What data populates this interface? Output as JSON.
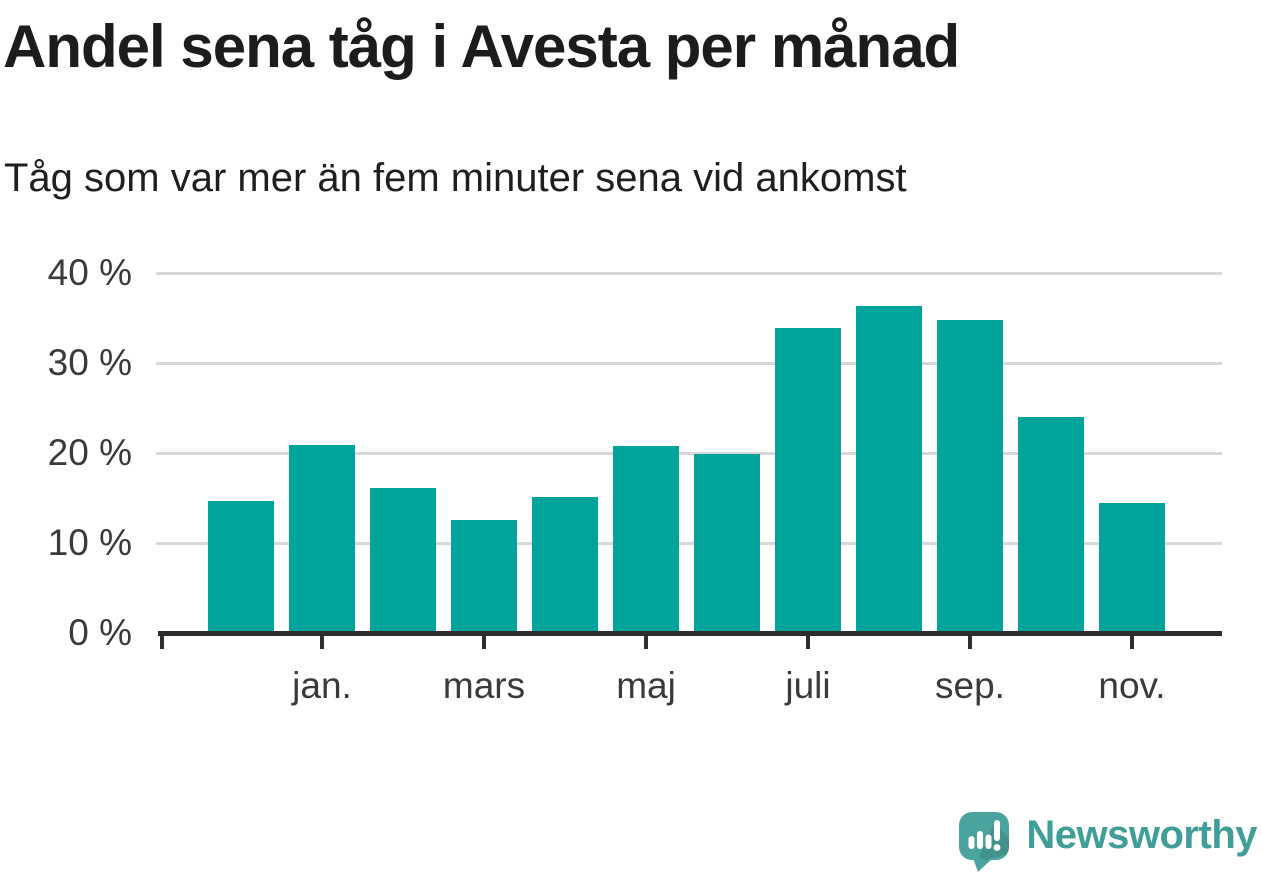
{
  "header": {
    "title": "Andel sena tåg i Avesta per månad",
    "subtitle": "Tåg som var mer än fem minuter sena vid ankomst"
  },
  "chart_data": {
    "type": "bar",
    "title": "Andel sena tåg i Avesta per månad",
    "subtitle": "Tåg som var mer än fem minuter sena vid ankomst",
    "unit": "%",
    "n_bars": 12,
    "values": [
      14.7,
      20.9,
      16.1,
      12.6,
      15.1,
      20.8,
      19.9,
      33.9,
      36.3,
      34.8,
      24.0,
      14.5
    ],
    "x_ticks": [
      {
        "label": "jan.",
        "bar_index": 1
      },
      {
        "label": "mars",
        "bar_index": 3
      },
      {
        "label": "maj",
        "bar_index": 5
      },
      {
        "label": "juli",
        "bar_index": 7
      },
      {
        "label": "sep.",
        "bar_index": 9
      },
      {
        "label": "nov.",
        "bar_index": 11
      }
    ],
    "y_ticks": [
      {
        "value": 0,
        "label": "0 %"
      },
      {
        "value": 10,
        "label": "10 %"
      },
      {
        "value": 20,
        "label": "20 %"
      },
      {
        "value": 30,
        "label": "30 %"
      },
      {
        "value": 40,
        "label": "40 %"
      }
    ],
    "ylim": [
      0,
      40
    ],
    "xlabel": "",
    "ylabel": "",
    "grid": "horizontal",
    "legend": "none",
    "bar_color": "#00a49a"
  },
  "branding": {
    "logo_text": "Newsworthy",
    "logo_icon": "speech-bubble-bar-chart-exclamation"
  },
  "colors": {
    "bar": "#00a49a",
    "grid": "#d8d8d8",
    "axis": "#2e2e2e",
    "title_text": "#1c1c1a",
    "subtitle_text": "#1f1f1f",
    "tick_text": "#3a3a3a",
    "logo_text": "#3f9e97",
    "logo_mark": "#4aa49d"
  }
}
